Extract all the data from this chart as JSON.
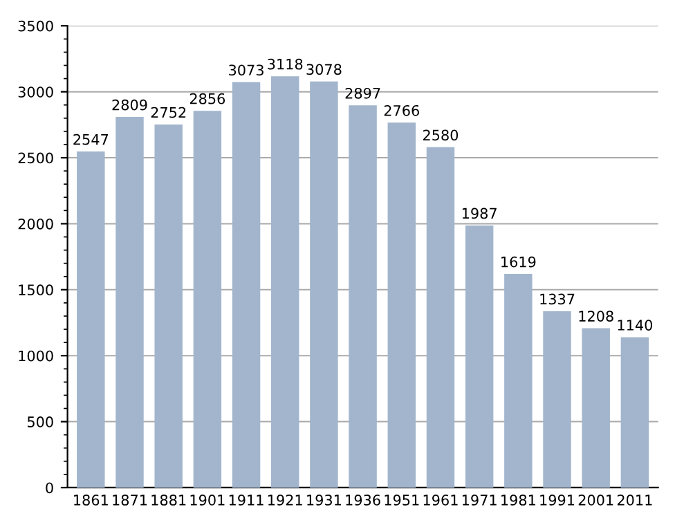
{
  "chart_data": {
    "type": "bar",
    "categories": [
      "1861",
      "1871",
      "1881",
      "1901",
      "1911",
      "1921",
      "1931",
      "1936",
      "1951",
      "1961",
      "1971",
      "1981",
      "1991",
      "2001",
      "2011"
    ],
    "values": [
      2547,
      2809,
      2752,
      2856,
      3073,
      3118,
      3078,
      2897,
      2766,
      2580,
      1987,
      1619,
      1337,
      1208,
      1140
    ],
    "color": "#a2b5cd",
    "ylim": [
      0,
      3500
    ],
    "yticks": [
      0,
      500,
      1000,
      1500,
      2000,
      2500,
      3000,
      3500
    ],
    "grid": "y",
    "data_labels": true,
    "legend": false
  }
}
